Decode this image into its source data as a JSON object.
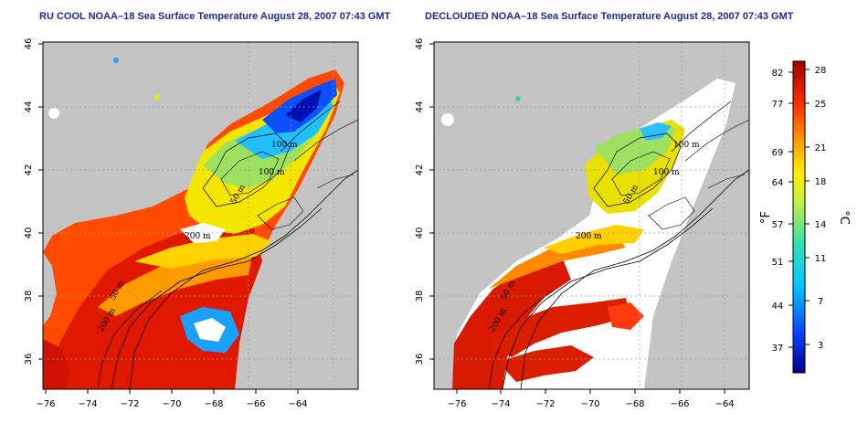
{
  "panels": [
    {
      "title": "RU COOL NOAA–18 Sea Surface Temperature August 28, 2007 07:43 GMT"
    },
    {
      "title": "DECLOUDED NOAA–18 Sea Surface Temperature August 28, 2007 07:43 GMT"
    }
  ],
  "x_ticks": [
    "−76",
    "−74",
    "−72",
    "−70",
    "−68",
    "−66",
    "−64"
  ],
  "y_ticks": [
    "36",
    "38",
    "40",
    "42",
    "44",
    "46"
  ],
  "contour_labels": [
    "100 m",
    "100 m",
    "50 m",
    "200 m",
    "50 m",
    "200 m"
  ],
  "colorbar": {
    "fahrenheit_label": "°F",
    "celsius_label": "°C",
    "fahrenheit_ticks": [
      "82",
      "77",
      "69",
      "64",
      "57",
      "51",
      "44",
      "37"
    ],
    "celsius_ticks": [
      "28",
      "25",
      "21",
      "18",
      "14",
      "11",
      "7",
      "3"
    ]
  },
  "colors": {
    "land": "#c0c0c0",
    "title": "#1c2a9c",
    "grid": "#9a9a9a"
  }
}
